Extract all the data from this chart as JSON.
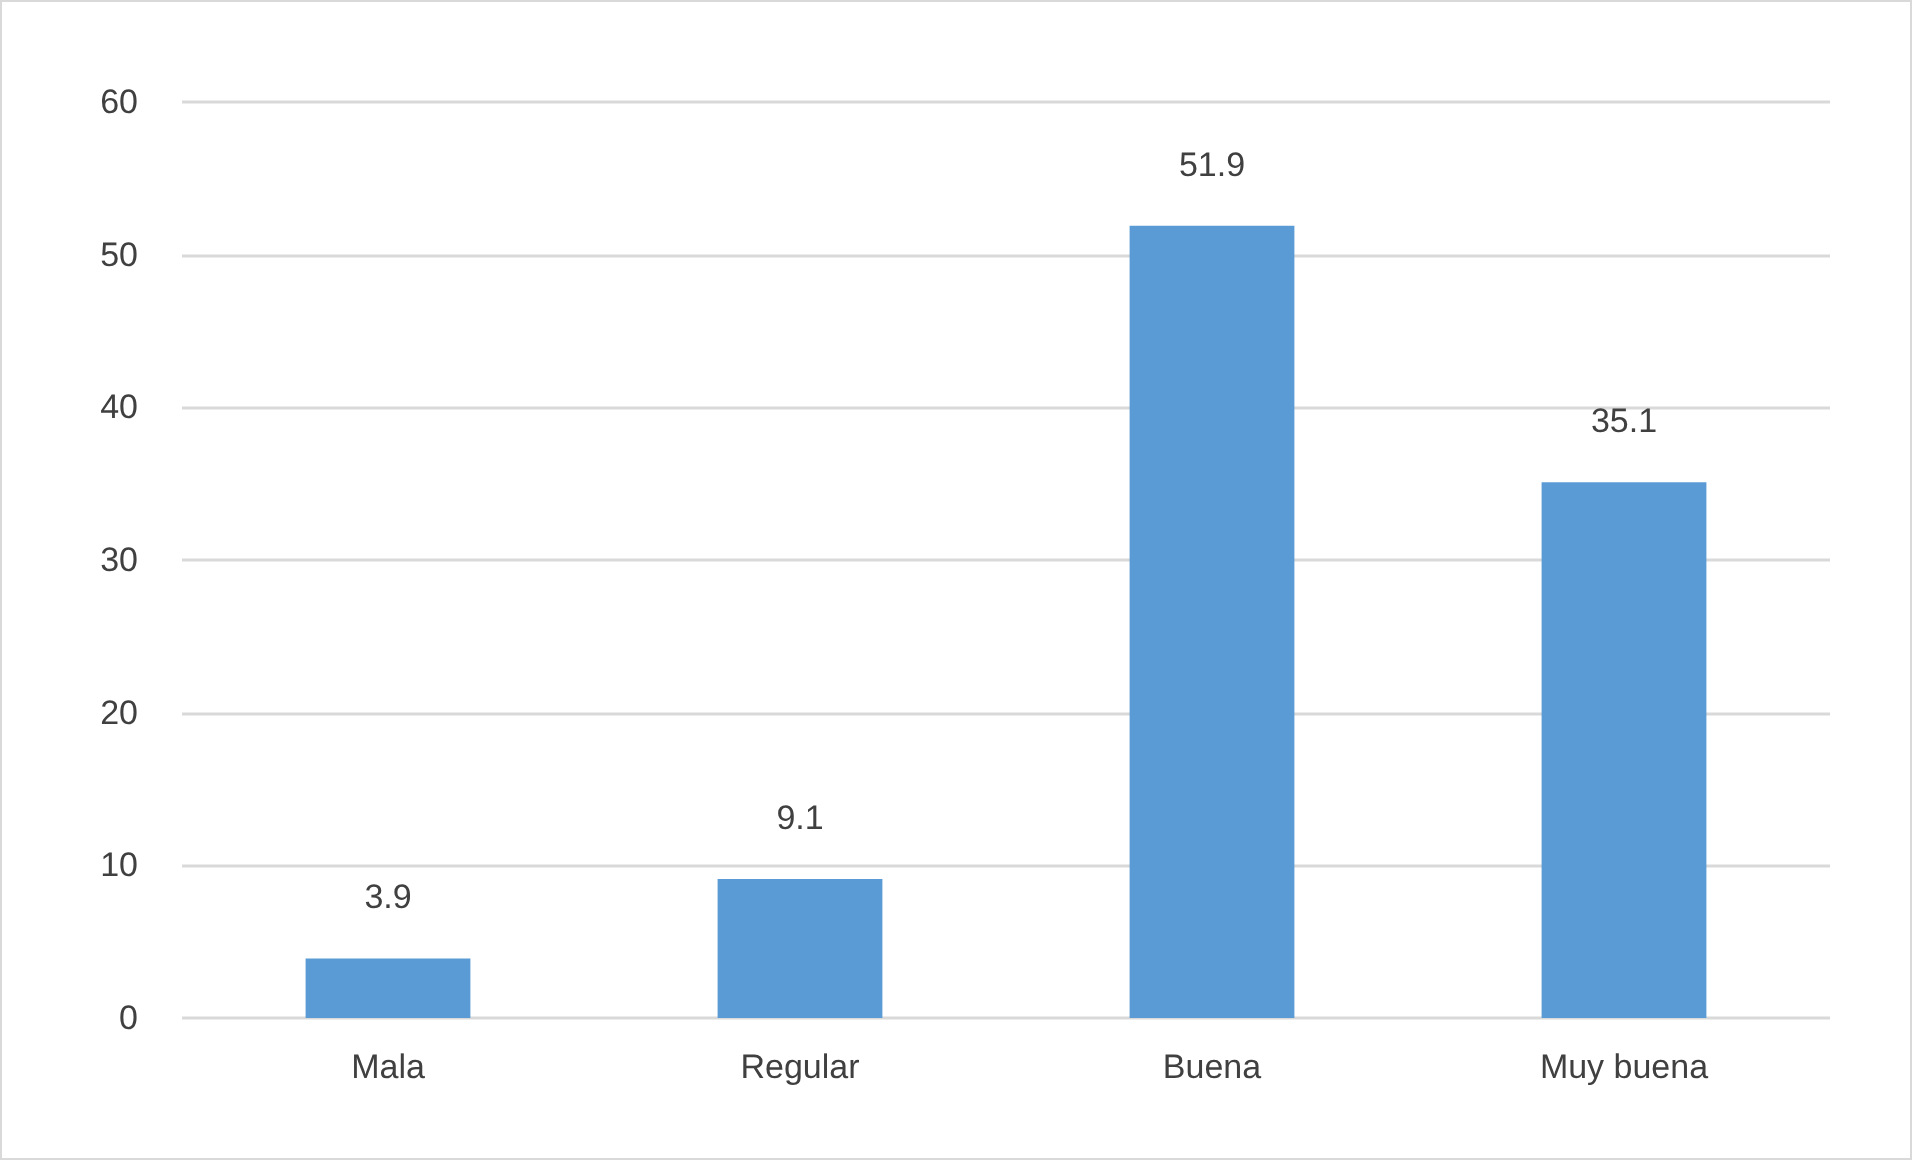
{
  "chart_data": {
    "type": "bar",
    "categories": [
      "Mala",
      "Regular",
      "Buena",
      "Muy buena"
    ],
    "values": [
      3.9,
      9.1,
      51.9,
      35.1
    ],
    "color": "#5b9bd5",
    "ylim": [
      0,
      60
    ],
    "yticks": [
      0,
      10,
      20,
      30,
      40,
      50,
      60
    ],
    "grid": "y",
    "data_labels": true
  }
}
